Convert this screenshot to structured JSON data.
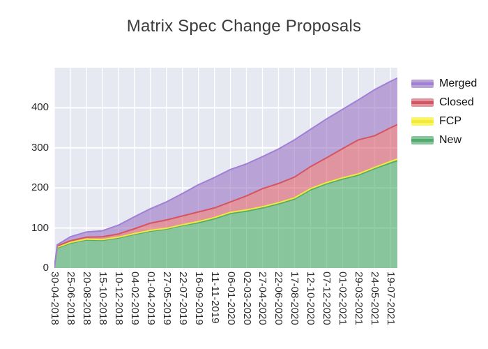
{
  "title": "Matrix Spec Change Proposals",
  "legend": {
    "items": [
      {
        "label": "Merged",
        "fill": "#b9a2d5",
        "line": "#a07fd6"
      },
      {
        "label": "Closed",
        "fill": "#df94a0",
        "line": "#d65460"
      },
      {
        "label": "FCP",
        "fill": "#f8f567",
        "line": "#f2e93c"
      },
      {
        "label": "New",
        "fill": "#87c59c",
        "line": "#52ab6c"
      }
    ]
  },
  "chart_data": {
    "type": "area",
    "stacked": true,
    "title": "Matrix Spec Change Proposals",
    "xlabel": "",
    "ylabel": "",
    "ylim": [
      0,
      500
    ],
    "y_ticks": [
      0,
      100,
      200,
      300,
      400
    ],
    "grid": true,
    "legend_position": "right-top",
    "plot_bg": "#e6e9f2",
    "grid_color": "#ffffff",
    "x_tick_labels": [
      "30-04-2018",
      "25-06-2018",
      "20-08-2018",
      "15-10-2018",
      "10-12-2018",
      "04-02-2019",
      "01-04-2019",
      "27-05-2019",
      "22-07-2019",
      "16-09-2019",
      "11-11-2019",
      "06-01-2020",
      "02-03-2020",
      "27-04-2020",
      "22-06-2020",
      "17-08-2020",
      "12-10-2020",
      "07-12-2020",
      "01-02-2021",
      "29-03-2021",
      "24-05-2021",
      "19-07-2021"
    ],
    "x_tick_days": [
      0,
      56,
      112,
      168,
      224,
      280,
      336,
      392,
      448,
      504,
      560,
      616,
      672,
      728,
      784,
      840,
      896,
      952,
      1008,
      1064,
      1120,
      1176
    ],
    "x_total_days": 1200,
    "point_dates": [
      "30-04-2018",
      "10-05-2018",
      "25-06-2018",
      "20-08-2018",
      "15-10-2018",
      "10-12-2018",
      "04-02-2019",
      "01-04-2019",
      "27-05-2019",
      "22-07-2019",
      "16-09-2019",
      "11-11-2019",
      "06-01-2020",
      "02-03-2020",
      "27-04-2020",
      "22-06-2020",
      "17-08-2020",
      "12-10-2020",
      "07-12-2020",
      "01-02-2021",
      "29-03-2021",
      "24-05-2021",
      "19-07-2021",
      "12-08-2021"
    ],
    "point_days": [
      0,
      10,
      56,
      112,
      168,
      224,
      280,
      336,
      392,
      448,
      504,
      560,
      616,
      672,
      728,
      784,
      840,
      896,
      952,
      1008,
      1064,
      1120,
      1176,
      1200
    ],
    "stack_order_bottom_to_top": [
      "New",
      "FCP",
      "Closed",
      "Merged"
    ],
    "series": [
      {
        "name": "New",
        "fill": "rgba(58,168,85,0.55)",
        "line": "#52ab6c",
        "values": [
          0,
          50,
          62,
          70,
          69,
          75,
          84,
          92,
          97,
          106,
          113,
          123,
          136,
          142,
          150,
          160,
          172,
          195,
          210,
          222,
          232,
          248,
          262,
          268
        ]
      },
      {
        "name": "FCP",
        "fill": "rgba(247,240,40,0.72)",
        "line": "#f2e93c",
        "values": [
          0,
          2,
          2,
          2,
          2,
          2,
          2,
          2,
          2,
          2,
          3,
          3,
          3,
          3,
          3,
          3,
          3,
          3,
          3,
          3,
          3,
          3,
          4,
          4
        ]
      },
      {
        "name": "Closed",
        "fill": "rgba(217,79,92,0.55)",
        "line": "#d65460",
        "values": [
          0,
          3,
          4,
          5,
          7,
          8,
          12,
          18,
          21,
          22,
          24,
          24,
          26,
          35,
          45,
          48,
          52,
          55,
          62,
          73,
          85,
          79,
          84,
          86
        ]
      },
      {
        "name": "Merged",
        "fill": "rgba(148,103,189,0.55)",
        "line": "#a07fd6",
        "values": [
          0,
          3,
          10,
          13,
          15,
          22,
          30,
          36,
          45,
          56,
          68,
          76,
          81,
          80,
          80,
          86,
          93,
          93,
          97,
          98,
          100,
          115,
          116,
          116
        ]
      }
    ]
  }
}
